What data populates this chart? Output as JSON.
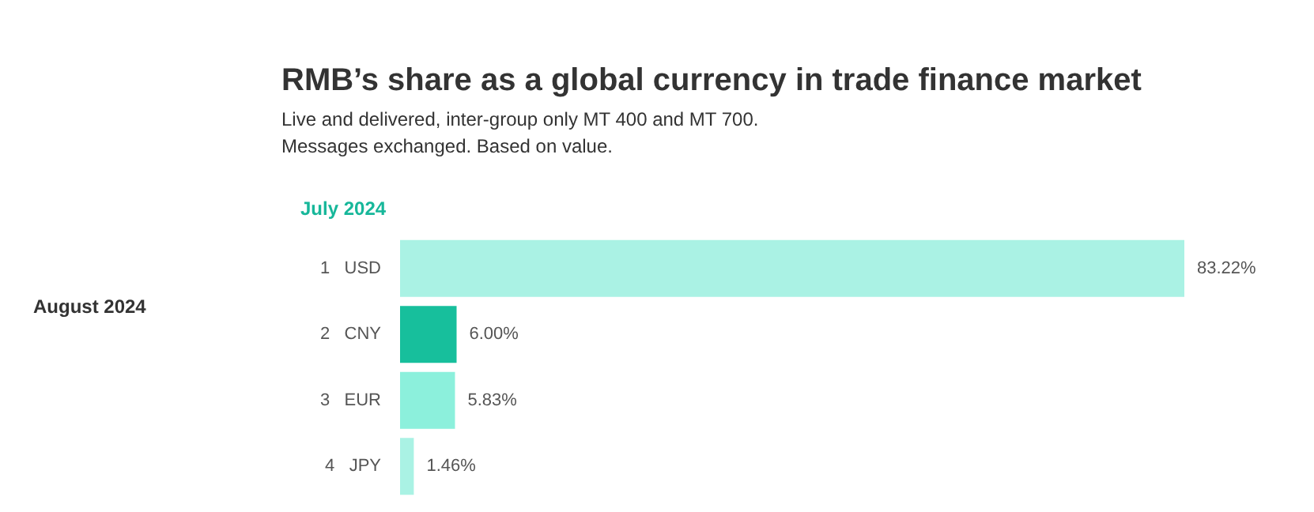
{
  "chart_data": {
    "type": "bar",
    "orientation": "horizontal",
    "title": "RMB’s share as a global currency in trade finance market",
    "subtitle": "Live and delivered, inter-group only MT 400 and MT 700.\nMessages exchanged. Based on value.",
    "categories": [
      "1   USD",
      "2   CNY",
      "3   EUR",
      "4   JPY"
    ],
    "values": [
      83.22,
      6.0,
      5.83,
      1.46
    ],
    "colors": [
      "#aaf2e4",
      "#17bf9c",
      "#8cf0dc",
      "#aaf2e4"
    ],
    "value_labels": [
      "83.22%",
      "6.00%",
      "5.83%",
      "1.46%"
    ],
    "annotations": [
      "July 2024",
      "August 2024"
    ]
  }
}
